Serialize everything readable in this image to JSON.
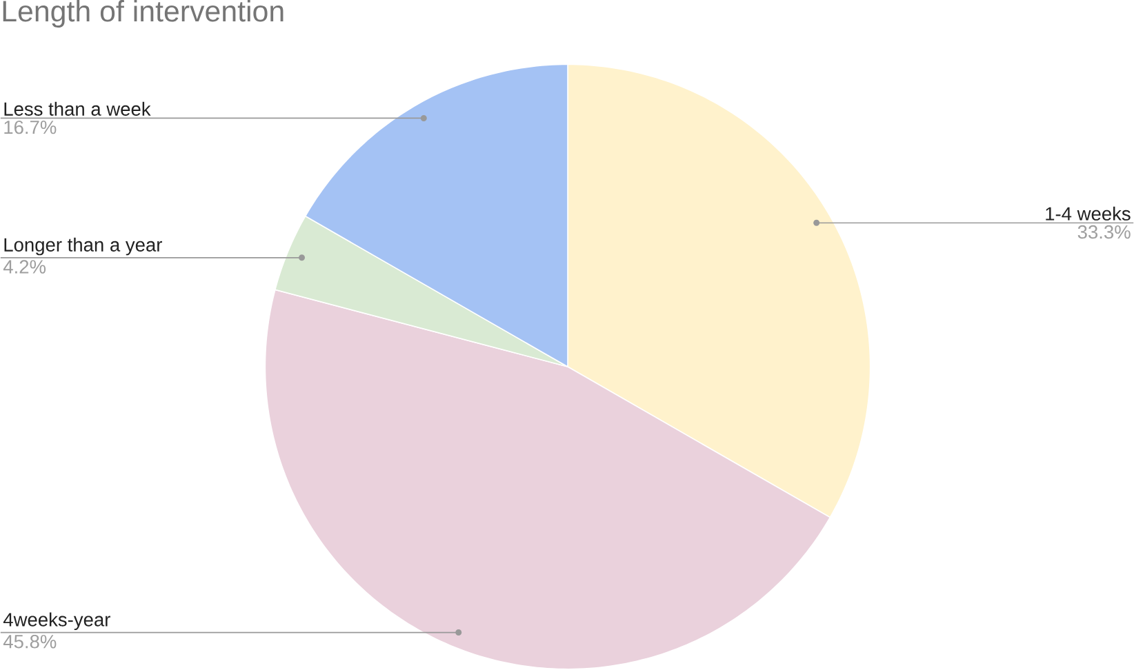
{
  "chart_data": {
    "type": "pie",
    "title": "Length of intervention",
    "categories": [
      "1-4 weeks",
      "4weeks-year",
      "Longer than a year",
      "Less than a week"
    ],
    "values": [
      33.3,
      45.8,
      4.2,
      16.7
    ],
    "value_labels": [
      "33.3%",
      "45.8%",
      "4.2%",
      "16.7%"
    ],
    "colors": [
      "#fff2cc",
      "#ead1dc",
      "#d9ead3",
      "#a4c2f4"
    ]
  }
}
